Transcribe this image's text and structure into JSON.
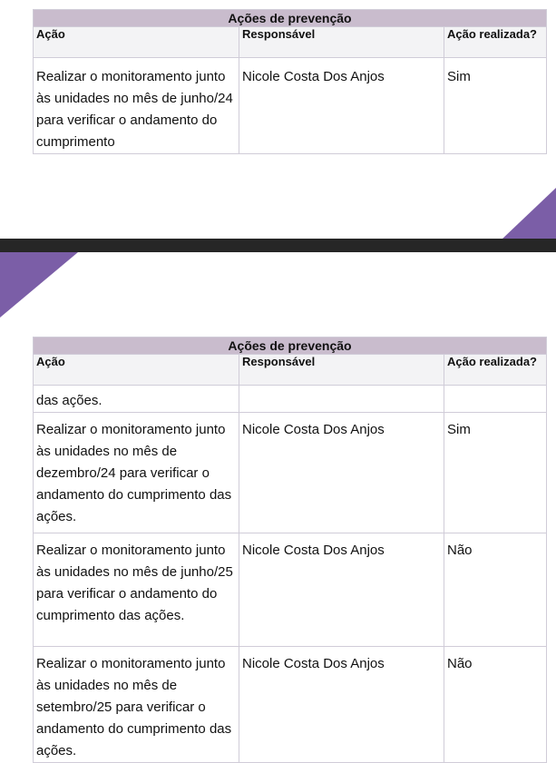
{
  "colors": {
    "accent": "#7b5ea7",
    "title_bg": "#c9bccd",
    "separator": "#262626"
  },
  "page1": {
    "table": {
      "title": "Ações de prevenção",
      "headers": [
        "Ação",
        "Responsável",
        "Ação realizada?"
      ],
      "rows": [
        {
          "acao": "Realizar o monitoramento junto às unidades no mês de junho/24 para verificar o andamento do cumprimento",
          "responsavel": "Nicole Costa Dos Anjos",
          "realizada": "Sim"
        }
      ]
    }
  },
  "page2": {
    "table": {
      "title": "Ações de prevenção",
      "headers": [
        "Ação",
        "Responsável",
        "Ação realizada?"
      ],
      "rows": [
        {
          "acao": "das ações.",
          "responsavel": "",
          "realizada": ""
        },
        {
          "acao": "Realizar o monitoramento junto às unidades no mês de dezembro/24 para verificar o andamento do cumprimento das ações.",
          "responsavel": "Nicole Costa Dos Anjos",
          "realizada": "Sim"
        },
        {
          "acao": "Realizar o monitoramento junto às unidades no mês de junho/25 para verificar o andamento do cumprimento das ações.",
          "responsavel": "Nicole Costa Dos Anjos",
          "realizada": "Não"
        },
        {
          "acao": "Realizar o monitoramento junto às unidades no mês de setembro/25 para verificar o andamento do cumprimento das ações.",
          "responsavel": "Nicole Costa Dos Anjos",
          "realizada": "Não"
        }
      ]
    }
  }
}
